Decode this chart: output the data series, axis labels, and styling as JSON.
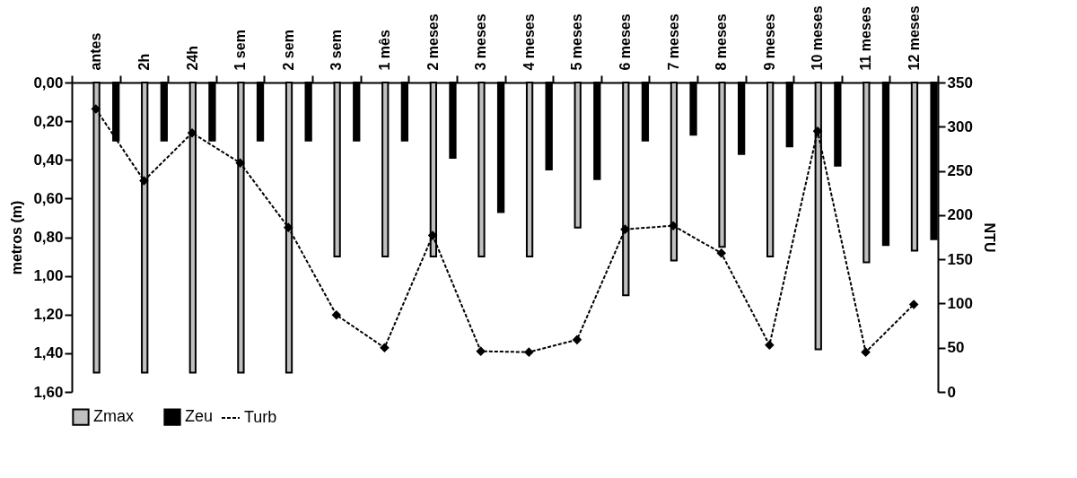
{
  "chart_data": {
    "type": "bar",
    "categories": [
      "antes",
      "2h",
      "24h",
      "1 sem",
      "2 sem",
      "3 sem",
      "1 mês",
      "2 meses",
      "3 meses",
      "4 meses",
      "5 meses",
      "6 meses",
      "7 meses",
      "8 meses",
      "9 meses",
      "10 meses",
      "11 meses",
      "12 meses"
    ],
    "ylabel": "metros (m)",
    "y2label": "NTU",
    "ylim": [
      1.6,
      0
    ],
    "yticks": [
      {
        "value": 0,
        "label": "0,00"
      },
      {
        "value": 0.2,
        "label": "0,20"
      },
      {
        "value": 0.4,
        "label": "0,40"
      },
      {
        "value": 0.6,
        "label": "0,60"
      },
      {
        "value": 0.8,
        "label": "0,80"
      },
      {
        "value": 1.0,
        "label": "1,00"
      },
      {
        "value": 1.2,
        "label": "1,20"
      },
      {
        "value": 1.4,
        "label": "1,40"
      },
      {
        "value": 1.6,
        "label": "1,60"
      }
    ],
    "y2lim": [
      0,
      350
    ],
    "y2ticks": [
      0,
      50,
      100,
      150,
      200,
      250,
      300,
      350
    ],
    "legend": "bottom",
    "grid": false,
    "marker": "diamond",
    "line_style": "dashed",
    "series": [
      {
        "name": "Zmax",
        "color": "#c0c0c0",
        "values": [
          1.5,
          1.5,
          1.5,
          1.5,
          1.5,
          0.9,
          0.9,
          0.9,
          0.9,
          0.9,
          0.75,
          1.1,
          0.92,
          0.85,
          0.9,
          1.38,
          0.93,
          0.87
        ]
      },
      {
        "name": "Zeu",
        "color": "#000000",
        "values": [
          0.3,
          0.3,
          0.3,
          0.3,
          0.3,
          0.3,
          0.3,
          0.39,
          0.67,
          0.45,
          0.5,
          0.3,
          0.27,
          0.37,
          0.33,
          0.43,
          0.84,
          0.81
        ]
      },
      {
        "name": "Turb",
        "type": "line",
        "axis": "y2",
        "color": "#000000",
        "values": [
          320,
          239,
          293,
          259,
          186,
          87,
          50,
          177,
          46,
          45,
          59,
          184,
          188,
          157,
          53,
          295,
          45,
          99
        ]
      }
    ]
  }
}
